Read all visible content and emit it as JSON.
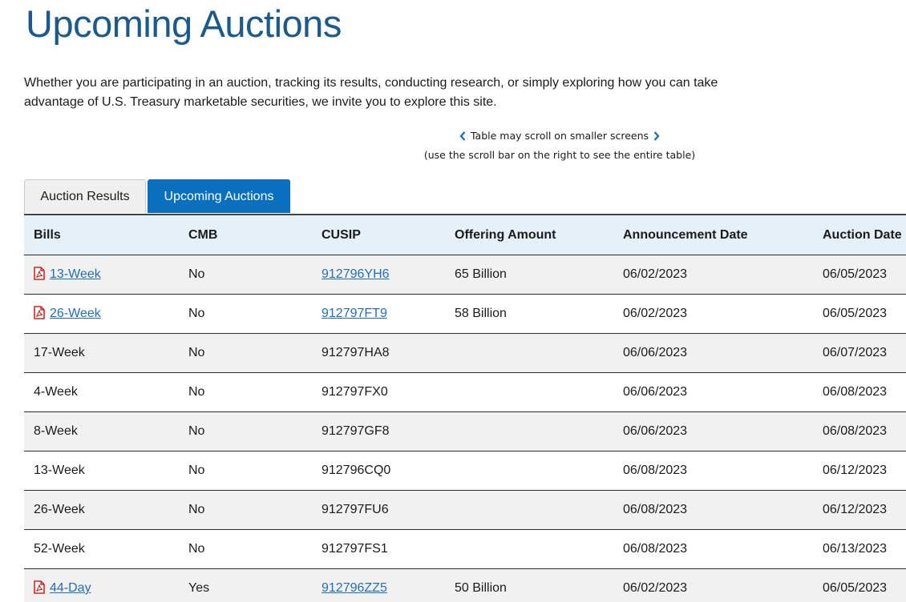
{
  "page": {
    "title": "Upcoming Auctions",
    "intro": "Whether you are participating in an auction, tracking its results, conducting research, or simply exploring how you can take advantage of U.S. Treasury marketable securities, we invite you to explore this site.",
    "scroll_hint_line1": "Table may scroll on smaller screens",
    "scroll_hint_line2": "(use the scroll bar on the right to see the entire table)"
  },
  "tabs": [
    {
      "label": "Auction Results",
      "active": false
    },
    {
      "label": "Upcoming Auctions",
      "active": true
    }
  ],
  "colors": {
    "title": "#1a5a8c",
    "active_tab": "#0b6fbf",
    "link": "#1f6fbf",
    "pdf_icon": "#d0281f",
    "header_bg": "#e6f0f9"
  },
  "table": {
    "columns": [
      "Bills",
      "CMB",
      "CUSIP",
      "Offering Amount",
      "Announcement Date",
      "Auction Date"
    ],
    "rows": [
      {
        "bill": "13-Week",
        "cmb": "No",
        "cusip": "912796YH6",
        "offering": "65 Billion",
        "announcement": "06/02/2023",
        "auction": "06/05/2023",
        "pdf": true
      },
      {
        "bill": "26-Week",
        "cmb": "No",
        "cusip": "912797FT9",
        "offering": "58 Billion",
        "announcement": "06/02/2023",
        "auction": "06/05/2023",
        "pdf": true
      },
      {
        "bill": "17-Week",
        "cmb": "No",
        "cusip": "912797HA8",
        "offering": "",
        "announcement": "06/06/2023",
        "auction": "06/07/2023",
        "pdf": false
      },
      {
        "bill": "4-Week",
        "cmb": "No",
        "cusip": "912797FX0",
        "offering": "",
        "announcement": "06/06/2023",
        "auction": "06/08/2023",
        "pdf": false
      },
      {
        "bill": "8-Week",
        "cmb": "No",
        "cusip": "912797GF8",
        "offering": "",
        "announcement": "06/06/2023",
        "auction": "06/08/2023",
        "pdf": false
      },
      {
        "bill": "13-Week",
        "cmb": "No",
        "cusip": "912796CQ0",
        "offering": "",
        "announcement": "06/08/2023",
        "auction": "06/12/2023",
        "pdf": false
      },
      {
        "bill": "26-Week",
        "cmb": "No",
        "cusip": "912797FU6",
        "offering": "",
        "announcement": "06/08/2023",
        "auction": "06/12/2023",
        "pdf": false
      },
      {
        "bill": "52-Week",
        "cmb": "No",
        "cusip": "912797FS1",
        "offering": "",
        "announcement": "06/08/2023",
        "auction": "06/13/2023",
        "pdf": false
      },
      {
        "bill": "44-Day",
        "cmb": "Yes",
        "cusip": "912796ZZ5",
        "offering": "50 Billion",
        "announcement": "06/02/2023",
        "auction": "06/05/2023",
        "pdf": true
      }
    ]
  }
}
